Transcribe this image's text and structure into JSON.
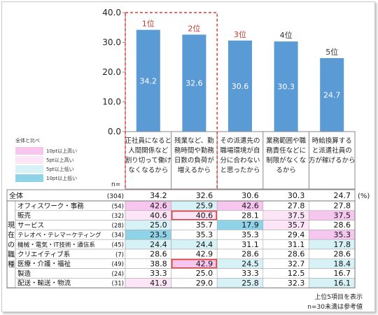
{
  "chart_data": {
    "type": "bar",
    "ylim": [
      0,
      40
    ],
    "yticks": [
      "0.0",
      "10.0",
      "20.0",
      "30.0",
      "40.0"
    ],
    "ranks": [
      "1位",
      "2位",
      "3位",
      "4位",
      "5位"
    ],
    "values": [
      34.2,
      32.6,
      30.6,
      30.3,
      24.7
    ],
    "value_labels": [
      "34.2",
      "32.6",
      "30.6",
      "30.3",
      "24.7"
    ],
    "categories": [
      [
        "正社員になると",
        "人間関係など",
        "割り切って働け",
        "なくなるから"
      ],
      [
        "残業など、勤",
        "務時間や勤務",
        "日数の負荷が",
        "増えるから"
      ],
      [
        "その派遣先の",
        "職場環境が自",
        "分に合わない",
        "と思ったから"
      ],
      [
        "業務範囲や職",
        "務責任などに",
        "制限がなくな",
        "るから"
      ],
      [
        "時給換算する",
        "と派遣社員の",
        "方が稼げるから"
      ]
    ],
    "n_label": "n=",
    "unit": "(%)",
    "colors": {
      "bar": "#5b9bd5",
      "rank_top": "#c0392b",
      "rank_other": "#333333",
      "highlight_box": "#e53935"
    },
    "legend": {
      "title": "全体と比べ",
      "items": [
        {
          "label": "10pt以上高い",
          "color": "#f7c6ef"
        },
        {
          "label": "5pt以上高い",
          "color": "#fbe5f7"
        },
        {
          "label": "5pt以上低い",
          "color": "#d6f2f7"
        },
        {
          "label": "10pt以上低い",
          "color": "#8fd3e8"
        }
      ]
    },
    "table": {
      "group_label": [
        "現",
        "在",
        "の",
        "職",
        "種"
      ],
      "total": {
        "label": "全体",
        "n": "(304)",
        "values": [
          "34.2",
          "32.6",
          "30.6",
          "30.3",
          "24.7"
        ]
      },
      "rows": [
        {
          "label": "オフィスワーク・事務",
          "n": "(54)",
          "values": [
            "42.6",
            "25.9",
            "42.6",
            "27.8",
            "27.8"
          ],
          "shade": [
            "h10",
            "l5",
            "h10",
            "n",
            "n"
          ],
          "boxed": [
            false,
            false,
            false,
            false,
            false
          ]
        },
        {
          "label": "販売",
          "n": "(32)",
          "values": [
            "40.6",
            "40.6",
            "28.1",
            "37.5",
            "37.5"
          ],
          "shade": [
            "h5",
            "h5",
            "n",
            "h5",
            "h10"
          ],
          "boxed": [
            false,
            true,
            false,
            false,
            false
          ]
        },
        {
          "label": "サービス",
          "n": "(28)",
          "values": [
            "25.0",
            "35.7",
            "17.9",
            "35.7",
            "28.6"
          ],
          "shade": [
            "l5",
            "n",
            "l10",
            "h5",
            "n"
          ],
          "boxed": [
            false,
            false,
            false,
            false,
            false
          ]
        },
        {
          "label": "テレオペ・テレマーケティング",
          "n": "(34)",
          "values": [
            "23.5",
            "35.3",
            "35.3",
            "29.4",
            "35.3"
          ],
          "shade": [
            "l10",
            "n",
            "n",
            "n",
            "h10"
          ],
          "boxed": [
            false,
            false,
            false,
            false,
            false
          ]
        },
        {
          "label": "機械・電気・IT技術・通信系",
          "n": "(45)",
          "values": [
            "24.4",
            "24.4",
            "31.1",
            "31.1",
            "17.8"
          ],
          "shade": [
            "l5",
            "l5",
            "n",
            "n",
            "l5"
          ],
          "boxed": [
            false,
            false,
            false,
            false,
            false
          ]
        },
        {
          "label": "クリエイティブ系",
          "n": "(7)",
          "values": [
            "28.6",
            "42.9",
            "28.6",
            "28.6",
            "28.6"
          ],
          "shade": [
            "n",
            "n",
            "n",
            "n",
            "n"
          ],
          "boxed": [
            false,
            false,
            false,
            false,
            false
          ]
        },
        {
          "label": "医療・介護・福祉",
          "n": "(49)",
          "values": [
            "38.8",
            "42.9",
            "24.5",
            "32.7",
            "18.4"
          ],
          "shade": [
            "n",
            "h10",
            "l5",
            "n",
            "l5"
          ],
          "boxed": [
            false,
            true,
            false,
            false,
            false
          ]
        },
        {
          "label": "製造",
          "n": "(24)",
          "values": [
            "33.3",
            "25.0",
            "33.3",
            "12.5",
            "16.7"
          ],
          "shade": [
            "n",
            "n",
            "n",
            "n",
            "n"
          ],
          "boxed": [
            false,
            false,
            false,
            false,
            false
          ]
        },
        {
          "label": "配送・輸送・物流",
          "n": "(31)",
          "values": [
            "41.9",
            "29.0",
            "25.8",
            "32.3",
            "16.1"
          ],
          "shade": [
            "h5",
            "n",
            "l5",
            "n",
            "l5"
          ],
          "boxed": [
            false,
            false,
            false,
            false,
            false
          ]
        }
      ]
    },
    "shade_colors": {
      "h10": "#f7c6ef",
      "h5": "#fbe5f7",
      "l5": "#d6f2f7",
      "l10": "#8fd3e8",
      "n": "#ffffff"
    }
  },
  "footnotes": [
    "上位5項目を表示",
    "n=30未満は参考値"
  ]
}
